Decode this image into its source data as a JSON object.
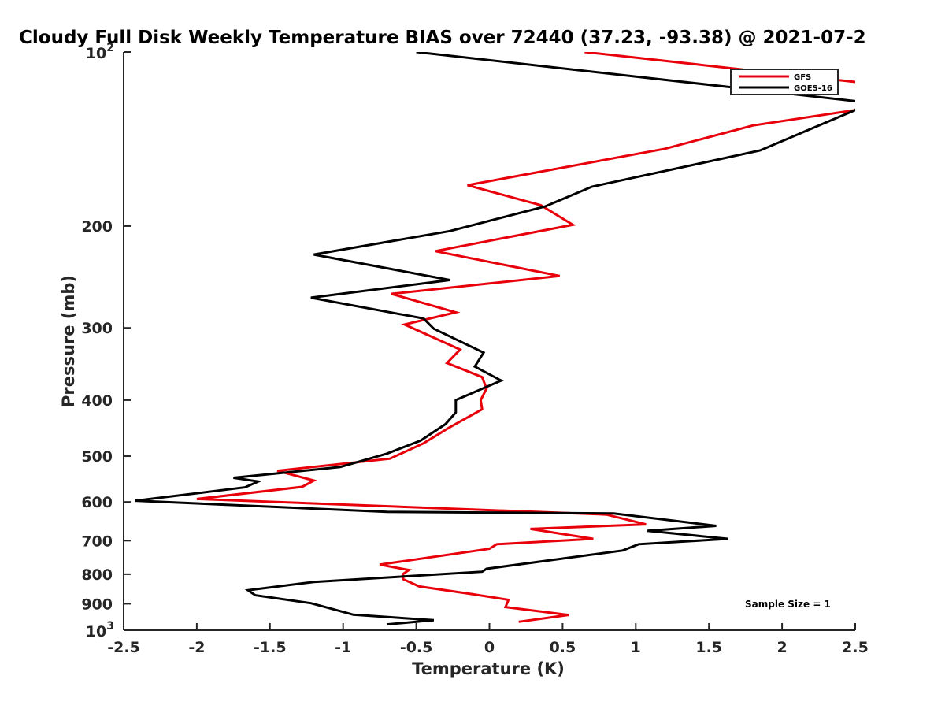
{
  "chart_data": {
    "type": "line",
    "title": "Cloudy Full Disk Weekly Temperature BIAS over 72440 (37.23, -93.38) @ 2021-07-2",
    "xlabel": "Temperature (K)",
    "ylabel": "Pressure (mb)",
    "xlim": [
      -2.5,
      2.5
    ],
    "ylim": [
      100,
      1000
    ],
    "y_scale": "log",
    "y_reversed": true,
    "grid": false,
    "x_ticks": [
      -2.5,
      -2,
      -1.5,
      -1,
      -0.5,
      0,
      0.5,
      1,
      1.5,
      2,
      2.5
    ],
    "x_tick_labels": [
      "-2.5",
      "-2",
      "-1.5",
      "-1",
      "-0.5",
      "0",
      "0.5",
      "1",
      "1.5",
      "2",
      "2.5"
    ],
    "y_ticks": [
      200,
      300,
      400,
      500,
      600,
      700,
      800,
      900
    ],
    "y_tick_labels": [
      "200",
      "300",
      "400",
      "500",
      "600",
      "700",
      "800",
      "900"
    ],
    "y_end_labels": {
      "top_base": "10",
      "top_exp": "2",
      "bottom_base": "10",
      "bottom_exp": "3"
    },
    "legend": {
      "position": "top-right",
      "entries": [
        "GFS",
        "GOES-16"
      ]
    },
    "annotation": "Sample Size = 1",
    "series": [
      {
        "name": "GFS",
        "color": "#e8000b",
        "points": [
          [
            0.65,
            100
          ],
          [
            2.55,
            113
          ],
          [
            2.55,
            125
          ],
          [
            2.5,
            126
          ],
          [
            1.8,
            134
          ],
          [
            1.2,
            147
          ],
          [
            -0.15,
            170
          ],
          [
            0.35,
            184
          ],
          [
            0.57,
            199
          ],
          [
            -0.37,
            221
          ],
          [
            0.48,
            244
          ],
          [
            -0.67,
            262
          ],
          [
            -0.23,
            282
          ],
          [
            -0.58,
            296
          ],
          [
            -0.2,
            327
          ],
          [
            -0.29,
            345
          ],
          [
            -0.05,
            365
          ],
          [
            -0.02,
            382
          ],
          [
            -0.06,
            400
          ],
          [
            -0.05,
            415
          ],
          [
            -0.28,
            447
          ],
          [
            -0.45,
            475
          ],
          [
            -0.68,
            505
          ],
          [
            -1.45,
            530
          ],
          [
            -1.2,
            551
          ],
          [
            -1.28,
            565
          ],
          [
            -2.0,
            593
          ],
          [
            0.8,
            631
          ],
          [
            1.07,
            656
          ],
          [
            0.28,
            668
          ],
          [
            0.71,
            695
          ],
          [
            0.05,
            710
          ],
          [
            0.0,
            723
          ],
          [
            -0.75,
            770
          ],
          [
            -0.55,
            787
          ],
          [
            -0.59,
            799
          ],
          [
            -0.59,
            816
          ],
          [
            -0.48,
            840
          ],
          [
            -0.12,
            866
          ],
          [
            0.13,
            886
          ],
          [
            0.11,
            912
          ],
          [
            0.54,
            941
          ],
          [
            0.2,
            967
          ]
        ]
      },
      {
        "name": "GOES-16",
        "color": "#000000",
        "points": [
          [
            -0.5,
            100
          ],
          [
            2.55,
            122
          ],
          [
            2.5,
            126
          ],
          [
            1.85,
            148
          ],
          [
            0.7,
            171
          ],
          [
            0.38,
            185
          ],
          [
            -0.27,
            204
          ],
          [
            -1.2,
            224
          ],
          [
            -0.27,
            248
          ],
          [
            -1.22,
            266
          ],
          [
            -0.45,
            289
          ],
          [
            -0.38,
            301
          ],
          [
            -0.04,
            331
          ],
          [
            -0.1,
            350
          ],
          [
            0.08,
            370
          ],
          [
            -0.23,
            400
          ],
          [
            -0.23,
            420
          ],
          [
            -0.3,
            440
          ],
          [
            -0.47,
            470
          ],
          [
            -0.7,
            495
          ],
          [
            -1.02,
            522
          ],
          [
            -1.75,
            545
          ],
          [
            -1.58,
            553
          ],
          [
            -1.67,
            566
          ],
          [
            -2.42,
            597
          ],
          [
            -0.7,
            624
          ],
          [
            0.85,
            628
          ],
          [
            1.55,
            660
          ],
          [
            1.08,
            673
          ],
          [
            1.63,
            695
          ],
          [
            1.02,
            710
          ],
          [
            0.91,
            728
          ],
          [
            -0.02,
            783
          ],
          [
            -0.05,
            792
          ],
          [
            -1.2,
            825
          ],
          [
            -1.65,
            853
          ],
          [
            -1.6,
            870
          ],
          [
            -1.22,
            898
          ],
          [
            -1.1,
            915
          ],
          [
            -0.93,
            940
          ],
          [
            -0.38,
            961
          ],
          [
            -0.7,
            977
          ]
        ]
      }
    ]
  }
}
